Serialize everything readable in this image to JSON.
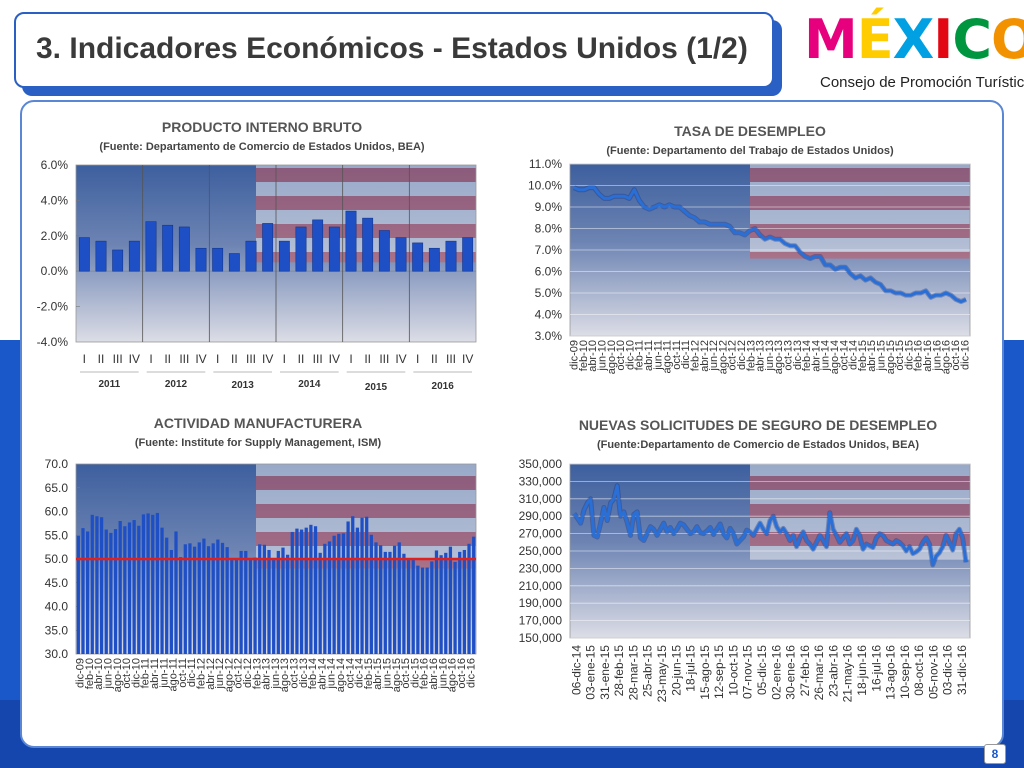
{
  "header": {
    "title": "3. Indicadores Económicos - Estados Unidos (1/2)",
    "logo_word": "MÉXICO",
    "logo_sub": "Consejo de Promoción Turística",
    "logo_colors": [
      "#e6007e",
      "#ffcc00",
      "#00a0e3",
      "#e30613",
      "#009640",
      "#f39200"
    ]
  },
  "page_number": "8",
  "colors": {
    "bar": "#1f4fc4",
    "line": "#2a6fd6",
    "ref_line": "#e0201c",
    "panel_border": "#5a86d6",
    "band": "#1a58c9"
  },
  "chart_data": [
    {
      "id": "gdp",
      "type": "bar",
      "title": "PRODUCTO INTERNO BRUTO",
      "subtitle": "(Fuente: Departamento de Comercio de Estados Unidos, BEA)",
      "ylim": [
        -4.0,
        6.0
      ],
      "yticks": [
        "6.0%",
        "4.0%",
        "2.0%",
        "0.0%",
        "-2.0%",
        "-4.0%"
      ],
      "quarters": [
        "I",
        "II",
        "III",
        "IV"
      ],
      "years": [
        "2011",
        "2012",
        "2013",
        "2014",
        "2015",
        "2016"
      ],
      "values": [
        1.9,
        1.7,
        1.2,
        1.7,
        2.8,
        2.6,
        2.5,
        1.3,
        1.3,
        1.0,
        1.7,
        2.7,
        1.7,
        2.5,
        2.9,
        2.5,
        3.4,
        3.0,
        2.3,
        1.9,
        1.6,
        1.3,
        1.7,
        1.9
      ]
    },
    {
      "id": "unemployment",
      "type": "line",
      "title": "TASA DE DESEMPLEO",
      "subtitle": "(Fuente: Departamento del Trabajo de Estados Unidos)",
      "ylim": [
        3.0,
        11.0
      ],
      "yticks": [
        "11.0%",
        "10.0%",
        "9.0%",
        "8.0%",
        "7.0%",
        "6.0%",
        "5.0%",
        "4.0%",
        "3.0%"
      ],
      "xticks": [
        "dic-09",
        "feb-10",
        "abr-10",
        "jun-10",
        "ago-10",
        "oct-10",
        "dic-10",
        "feb-11",
        "abr-11",
        "jun-11",
        "ago-11",
        "oct-11",
        "dic-11",
        "feb-12",
        "abr-12",
        "jun-12",
        "ago-12",
        "oct-12",
        "dic-12",
        "feb-13",
        "abr-13",
        "jun-13",
        "ago-13",
        "oct-13",
        "dic-13",
        "feb-14",
        "abr-14",
        "jun-14",
        "ago-14",
        "oct-14",
        "dic-14",
        "feb-15",
        "abr-15",
        "jun-15",
        "ago-15",
        "oct-15",
        "dic-15",
        "feb-16",
        "abr-16",
        "jun-16",
        "ago-16",
        "oct-16",
        "dic-16"
      ],
      "values": [
        9.9,
        9.8,
        9.8,
        9.9,
        9.9,
        9.6,
        9.4,
        9.4,
        9.5,
        9.5,
        9.5,
        9.4,
        9.8,
        9.3,
        9.0,
        8.9,
        9.0,
        9.1,
        9.0,
        9.1,
        9.0,
        9.0,
        8.8,
        8.6,
        8.5,
        8.3,
        8.3,
        8.2,
        8.2,
        8.2,
        8.2,
        8.1,
        7.8,
        7.8,
        7.7,
        7.9,
        8.0,
        7.7,
        7.5,
        7.6,
        7.5,
        7.5,
        7.3,
        7.2,
        7.2,
        6.9,
        6.7,
        6.6,
        6.7,
        6.7,
        6.3,
        6.3,
        6.1,
        6.2,
        6.2,
        5.9,
        5.7,
        5.8,
        5.6,
        5.7,
        5.5,
        5.4,
        5.1,
        5.1,
        5.0,
        5.0,
        4.9,
        4.9,
        5.0,
        5.0,
        5.1,
        4.8,
        4.9,
        4.9,
        5.0,
        4.9,
        4.7,
        4.6,
        4.7
      ]
    },
    {
      "id": "manufacturing",
      "type": "bar",
      "title": "ACTIVIDAD MANUFACTURERA",
      "subtitle": "(Fuente: Institute for Supply Management, ISM)",
      "ylim": [
        30.0,
        70.0
      ],
      "yticks": [
        "70.0",
        "65.0",
        "60.0",
        "55.0",
        "50.0",
        "45.0",
        "40.0",
        "35.0",
        "30.0"
      ],
      "ref_value": 50.0,
      "xticks": [
        "dic-09",
        "feb-10",
        "abr-10",
        "jun-10",
        "ago-10",
        "oct-10",
        "dic-10",
        "feb-11",
        "abr-11",
        "jun-11",
        "ago-11",
        "oct-11",
        "dic-11",
        "feb-12",
        "abr-12",
        "jun-12",
        "ago-12",
        "oct-12",
        "dic-12",
        "feb-13",
        "abr-13",
        "jun-13",
        "ago-13",
        "oct-13",
        "dic-13",
        "feb-14",
        "abr-14",
        "jun-14",
        "ago-14",
        "oct-14",
        "dic-14",
        "feb-15",
        "abr-15",
        "jun-15",
        "ago-15",
        "oct-15",
        "dic-15",
        "feb-16",
        "abr-16",
        "jun-16",
        "ago-16",
        "oct-16",
        "dic-16"
      ],
      "values": [
        54.9,
        56.5,
        55.8,
        59.3,
        59.0,
        58.8,
        56.2,
        55.5,
        56.3,
        58.0,
        56.9,
        57.7,
        58.2,
        57.0,
        59.4,
        59.6,
        59.3,
        59.7,
        56.6,
        54.5,
        51.9,
        55.8,
        50.4,
        53.1,
        53.3,
        52.6,
        53.5,
        54.3,
        52.7,
        53.3,
        54.1,
        53.4,
        52.5,
        49.9,
        50.2,
        51.7,
        51.7,
        49.8,
        50.3,
        53.1,
        53.0,
        51.9,
        50.2,
        51.7,
        52.4,
        50.9,
        55.7,
        56.4,
        56.2,
        56.6,
        57.2,
        56.9,
        51.3,
        53.2,
        53.7,
        54.9,
        55.3,
        55.4,
        57.9,
        59.0,
        56.6,
        58.7,
        58.9,
        55.1,
        53.5,
        52.9,
        51.5,
        51.5,
        52.8,
        53.5,
        51.1,
        50.2,
        50.1,
        48.6,
        48.2,
        48.2,
        49.5,
        51.8,
        50.8,
        51.3,
        52.6,
        49.4,
        51.5,
        51.9,
        53.2,
        54.7
      ]
    },
    {
      "id": "jobless_claims",
      "type": "line",
      "title": "NUEVAS SOLICITUDES DE SEGURO DE DESEMPLEO",
      "subtitle": "(Fuente:Departamento de Comercio de Estados Unidos, BEA)",
      "ylim": [
        150000,
        350000
      ],
      "yticks": [
        "350,000",
        "330,000",
        "310,000",
        "290,000",
        "270,000",
        "250,000",
        "230,000",
        "210,000",
        "190,000",
        "170,000",
        "150,000"
      ],
      "xticks": [
        "06-dic-14",
        "03-ene-15",
        "31-ene-15",
        "28-feb-15",
        "28-mar-15",
        "25-abr-15",
        "23-may-15",
        "20-jun-15",
        "18-jul-15",
        "15-ago-15",
        "12-sep-15",
        "10-oct-15",
        "07-nov-15",
        "05-dic-15",
        "02-ene-16",
        "30-ene-16",
        "27-feb-16",
        "26-mar-16",
        "23-abr-16",
        "21-may-16",
        "18-jun-16",
        "16-jul-16",
        "13-ago-16",
        "10-sep-16",
        "08-oct-16",
        "05-nov-16",
        "03-dic-16",
        "31-dic-16"
      ],
      "values": [
        293000,
        288000,
        282000,
        297000,
        305000,
        310000,
        268000,
        266000,
        282000,
        300000,
        285000,
        305000,
        310000,
        325000,
        290000,
        295000,
        283000,
        268000,
        292000,
        295000,
        265000,
        262000,
        270000,
        278000,
        275000,
        268000,
        275000,
        282000,
        272000,
        277000,
        270000,
        275000,
        282000,
        280000,
        275000,
        270000,
        272000,
        278000,
        271000,
        270000,
        273000,
        277000,
        269000,
        275000,
        281000,
        270000,
        265000,
        276000,
        270000,
        258000,
        262000,
        266000,
        274000,
        272000,
        268000,
        275000,
        282000,
        275000,
        270000,
        285000,
        290000,
        278000,
        272000,
        276000,
        270000,
        262000,
        268000,
        255000,
        265000,
        272000,
        262000,
        258000,
        252000,
        260000,
        268000,
        262000,
        255000,
        294000,
        275000,
        268000,
        260000,
        265000,
        270000,
        258000,
        262000,
        275000,
        268000,
        252000,
        258000,
        256000,
        254000,
        265000,
        270000,
        268000,
        262000,
        260000,
        258000,
        262000,
        260000,
        256000,
        250000,
        255000,
        247000,
        249000,
        252000,
        260000,
        265000,
        258000,
        234000,
        244000,
        248000,
        255000,
        268000,
        260000,
        251000,
        270000,
        275000,
        265000,
        237000
      ]
    }
  ]
}
